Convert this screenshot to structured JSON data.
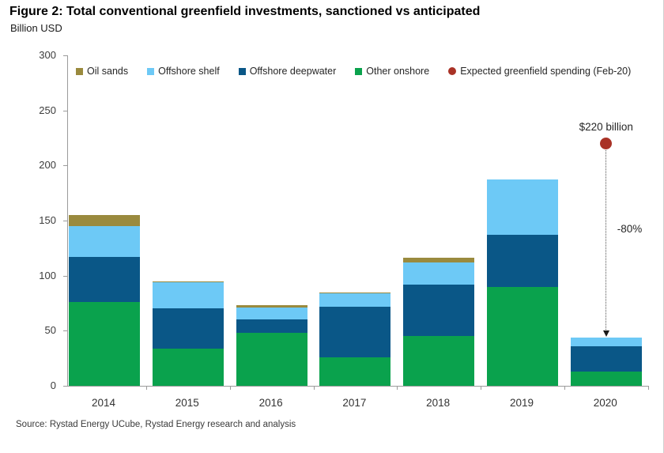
{
  "figure": {
    "title": "Figure 2: Total conventional greenfield investments, sanctioned vs anticipated",
    "subtitle": "Billion USD",
    "source": "Source: Rystad Energy UCube, Rystad Energy research and analysis"
  },
  "annotation": {
    "dot_label": "$220 billion",
    "change_label": "-80%"
  },
  "colors": {
    "oil_sands": "#9a8a3e",
    "offshore_shelf": "#6dc9f6",
    "offshore_deepwater": "#0a5787",
    "other_onshore": "#0aa24d",
    "expected_dot": "#a93226",
    "axis": "#9b9b9b",
    "text": "#3c3c3c"
  },
  "chart_data": {
    "type": "bar",
    "stacked": true,
    "title": "Figure 2: Total conventional greenfield investments, sanctioned vs anticipated",
    "ylabel": "Billion USD",
    "xlabel": "",
    "categories": [
      "2014",
      "2015",
      "2016",
      "2017",
      "2018",
      "2019",
      "2020"
    ],
    "stack_order": "bottom-to-top",
    "series": [
      {
        "name": "Other onshore",
        "color": "#0aa24d",
        "values": [
          76,
          34,
          48,
          26,
          45,
          90,
          13
        ]
      },
      {
        "name": "Offshore deepwater",
        "color": "#0a5787",
        "values": [
          41,
          36,
          12,
          46,
          47,
          47,
          23
        ]
      },
      {
        "name": "Offshore shelf",
        "color": "#6dc9f6",
        "values": [
          28,
          24,
          11,
          12,
          20,
          50,
          8
        ]
      },
      {
        "name": "Oil sands",
        "color": "#9a8a3e",
        "values": [
          10,
          1,
          2,
          1,
          4,
          0,
          0
        ]
      }
    ],
    "totals": [
      155,
      95,
      73,
      85,
      116,
      187,
      44
    ],
    "point_series": {
      "name": "Expected greenfield spending (Feb-20)",
      "color": "#a93226",
      "x": "2020",
      "y": 220
    },
    "ylim": [
      0,
      300
    ],
    "yticks": [
      0,
      50,
      100,
      150,
      200,
      250,
      300
    ],
    "grid": false,
    "legend_position": "top-inside",
    "legend": [
      {
        "label": "Oil sands",
        "color": "#9a8a3e",
        "shape": "square"
      },
      {
        "label": "Offshore shelf",
        "color": "#6dc9f6",
        "shape": "square"
      },
      {
        "label": "Offshore deepwater",
        "color": "#0a5787",
        "shape": "square"
      },
      {
        "label": "Other onshore",
        "color": "#0aa24d",
        "shape": "square"
      },
      {
        "label": "Expected greenfield spending (Feb-20)",
        "color": "#a93226",
        "shape": "circle"
      }
    ]
  }
}
